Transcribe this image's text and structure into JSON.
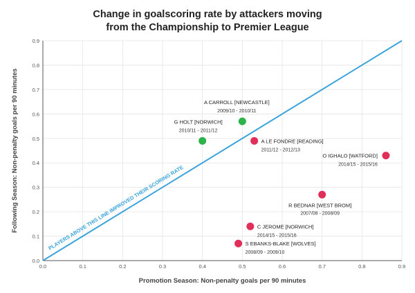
{
  "chart_data": {
    "type": "scatter",
    "title_lines": [
      "Change in goalscoring rate by attackers moving",
      "from the Championship to Premier League"
    ],
    "xlabel": "Promotion Season: Non-penalty goals per 90 minutes",
    "ylabel": "Following Season: Non-penalty goals per 90 minutes",
    "xlim": [
      0,
      0.9
    ],
    "ylim": [
      0,
      0.9
    ],
    "xticks": [
      "0.0",
      "0.1",
      "0.2",
      "0.3",
      "0.4",
      "0.5",
      "0.6",
      "0.7",
      "0.8",
      "0.9"
    ],
    "yticks": [
      "0.0",
      "0.1",
      "0.2",
      "0.3",
      "0.4",
      "0.5",
      "0.6",
      "0.7",
      "0.8",
      "0.9"
    ],
    "grid": true,
    "diagonal_label": "PLAYERS ABOVE THIS LINE IMPROVED THEIR SCORING RATE",
    "colors": {
      "improved": "#2cb34a",
      "declined": "#e0305a",
      "diagonal": "#3aa3dc"
    },
    "points": [
      {
        "name": "A CARROLL [NEWCASTLE]",
        "season": "2009/10 - 2010/11",
        "x": 0.5,
        "y": 0.57,
        "group": "improved"
      },
      {
        "name": "G HOLT [NORWICH]",
        "season": "2010/11 - 2011/12",
        "x": 0.4,
        "y": 0.49,
        "group": "improved"
      },
      {
        "name": "A LE FONDRE [READING]",
        "season": "2011/12 - 2012/13",
        "x": 0.53,
        "y": 0.49,
        "group": "declined"
      },
      {
        "name": "O IGHALO [WATFORD]",
        "season": "2014/15 - 2015/16",
        "x": 0.86,
        "y": 0.43,
        "group": "declined"
      },
      {
        "name": "R BEDNAR [WEST BROM]",
        "season": "2007/08 - 2008/09",
        "x": 0.7,
        "y": 0.27,
        "group": "declined"
      },
      {
        "name": "C JEROME [NORWICH]",
        "season": "2014/15 - 2015/16",
        "x": 0.52,
        "y": 0.14,
        "group": "declined"
      },
      {
        "name": "S EBANKS-BLAKE [WOLVES]",
        "season": "2008/09 - 2009/10",
        "x": 0.49,
        "y": 0.07,
        "group": "declined"
      }
    ]
  }
}
